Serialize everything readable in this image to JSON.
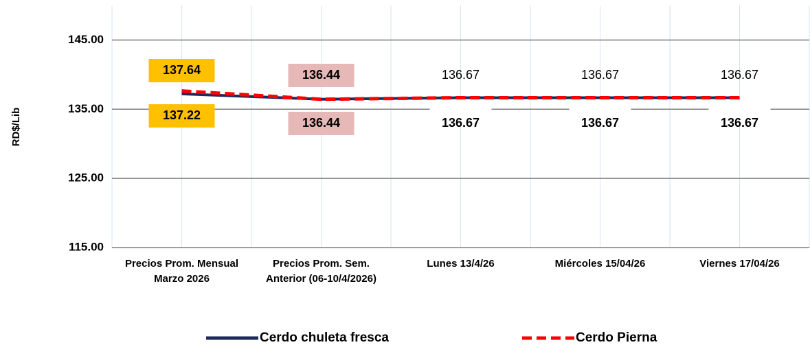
{
  "chart_data": {
    "type": "line",
    "y_label": "RD$/Lib",
    "categories": [
      "Precios Prom. Mensual Marzo 2026",
      "Precios Prom. Sem. Anterior (06-10/4/2026)",
      "Lunes 13/4/26",
      "Miércoles 15/04/26",
      "Viernes  17/04/26"
    ],
    "series": [
      {
        "name": "Cerdo chuleta fresca",
        "color": "#1f2a5c",
        "values": [
          137.22,
          136.44,
          136.67,
          136.67,
          136.67
        ]
      },
      {
        "name": "Cerdo Pierna",
        "color": "#ff0000",
        "dashed": true,
        "values": [
          137.64,
          136.44,
          136.67,
          136.67,
          136.67
        ]
      }
    ],
    "ylim": [
      115,
      150
    ],
    "yticks": [
      {
        "value": 115,
        "label": "115.00"
      },
      {
        "value": 125,
        "label": "125.00"
      },
      {
        "value": 135,
        "label": "135.00"
      },
      {
        "value": 145,
        "label": "145.00"
      }
    ],
    "grid": true,
    "legend": "bottom"
  }
}
